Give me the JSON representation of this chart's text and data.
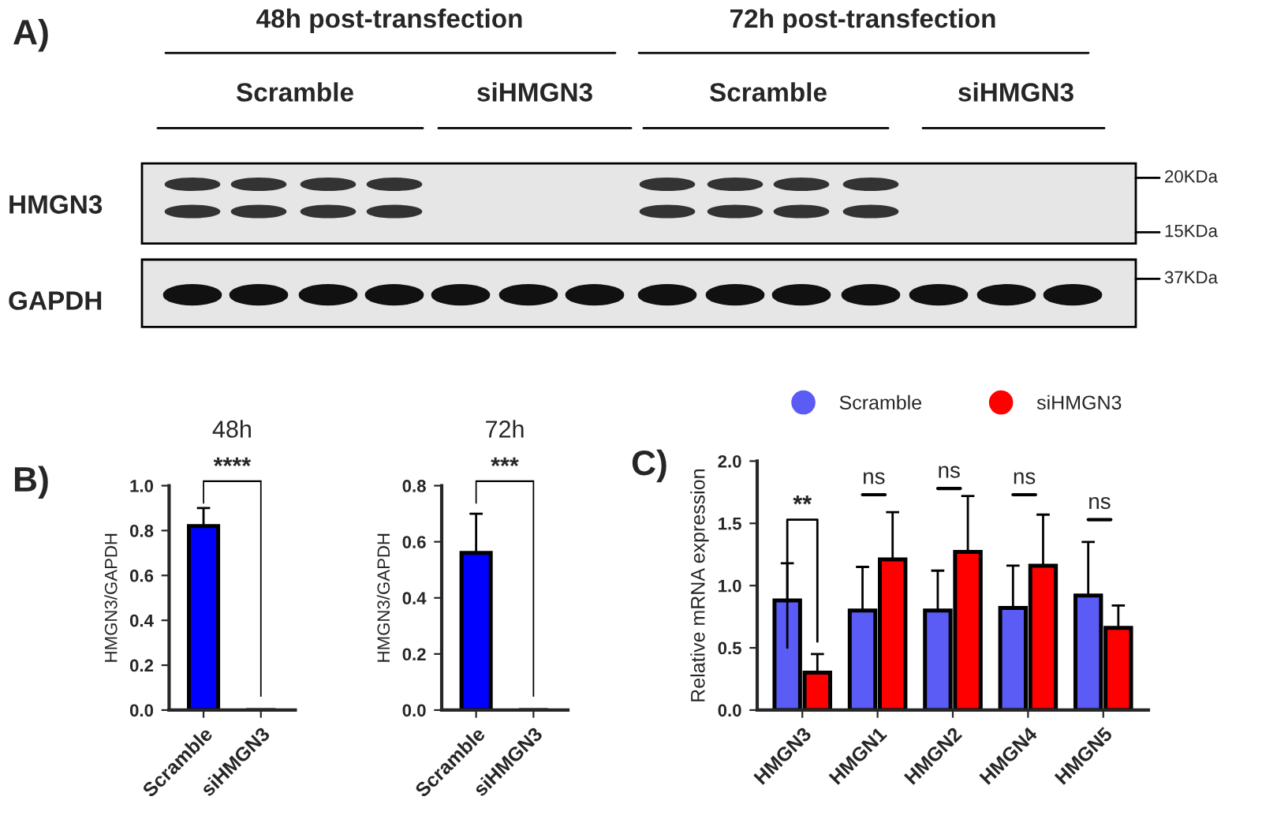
{
  "chart_data": [
    {
      "type": "other",
      "annotations": [
        "A)",
        "48h post-transfection",
        "72h post-transfection",
        "Scramble",
        "siHMGN3",
        "Scramble",
        "siHMGN3",
        "HMGN3",
        "GAPDH",
        "20KDa",
        "15KDa",
        "37KDa"
      ]
    },
    {
      "type": "bar",
      "title": "48h",
      "ylabel": "HMGN3/GAPDH",
      "categories": [
        "Scramble",
        "siHMGN3"
      ],
      "values": [
        0.82,
        0
      ],
      "errors": [
        [
          0.82,
          0.9
        ],
        null
      ],
      "color": "#0000ff",
      "ylim": [
        0,
        1.0
      ],
      "yticks": [
        {
          "value": 0,
          "label": "0.0"
        },
        0.2,
        0.4,
        0.6,
        0.8,
        {
          "value": 1.0,
          "label": "1.0"
        }
      ],
      "annotations": [
        "B)",
        "****"
      ],
      "grid": false,
      "legend": false
    },
    {
      "type": "bar",
      "title": "72h",
      "ylabel": "HMGN3/GAPDH",
      "categories": [
        "Scramble",
        "siHMGN3"
      ],
      "values": [
        0.56,
        0
      ],
      "errors": [
        [
          0.56,
          0.7
        ],
        null
      ],
      "color": "#0000ff",
      "ylim": [
        0,
        0.8
      ],
      "yticks": [
        {
          "value": 0,
          "label": "0.0"
        },
        0.2,
        0.4,
        0.6,
        0.8
      ],
      "annotations": [
        "***"
      ],
      "grid": false,
      "legend": false
    },
    {
      "type": "bar",
      "ylabel": "Relative mRNA expression",
      "categories": [
        "HMGN3",
        "HMGN1",
        "HMGN2",
        "HMGN4",
        "HMGN5"
      ],
      "series": [
        {
          "name": "Scramble",
          "color": "#5b5bf5",
          "values": [
            0.88,
            0.8,
            0.8,
            0.82,
            0.92
          ],
          "errors": [
            [
              0.88,
              1.18
            ],
            [
              0.8,
              1.15
            ],
            [
              0.8,
              1.12
            ],
            [
              0.82,
              1.16
            ],
            [
              0.92,
              1.35
            ]
          ]
        },
        {
          "name": "siHMGN3",
          "color": "#ff0000",
          "values": [
            0.3,
            1.21,
            1.27,
            1.16,
            0.66
          ],
          "errors": [
            [
              0.3,
              0.45
            ],
            [
              1.21,
              1.59
            ],
            [
              1.27,
              1.72
            ],
            [
              1.16,
              1.57
            ],
            [
              0.66,
              0.84
            ]
          ]
        }
      ],
      "ylim": [
        0,
        2.0
      ],
      "yticks": [
        {
          "value": 0,
          "label": "0.0"
        },
        0.5,
        {
          "value": 1.0,
          "label": "1.0"
        },
        1.5,
        {
          "value": 2.0,
          "label": "2.0"
        }
      ],
      "annotations": [
        "C)",
        "**",
        "ns",
        "ns",
        "ns",
        "ns"
      ],
      "grid": false,
      "legend": "top"
    }
  ]
}
